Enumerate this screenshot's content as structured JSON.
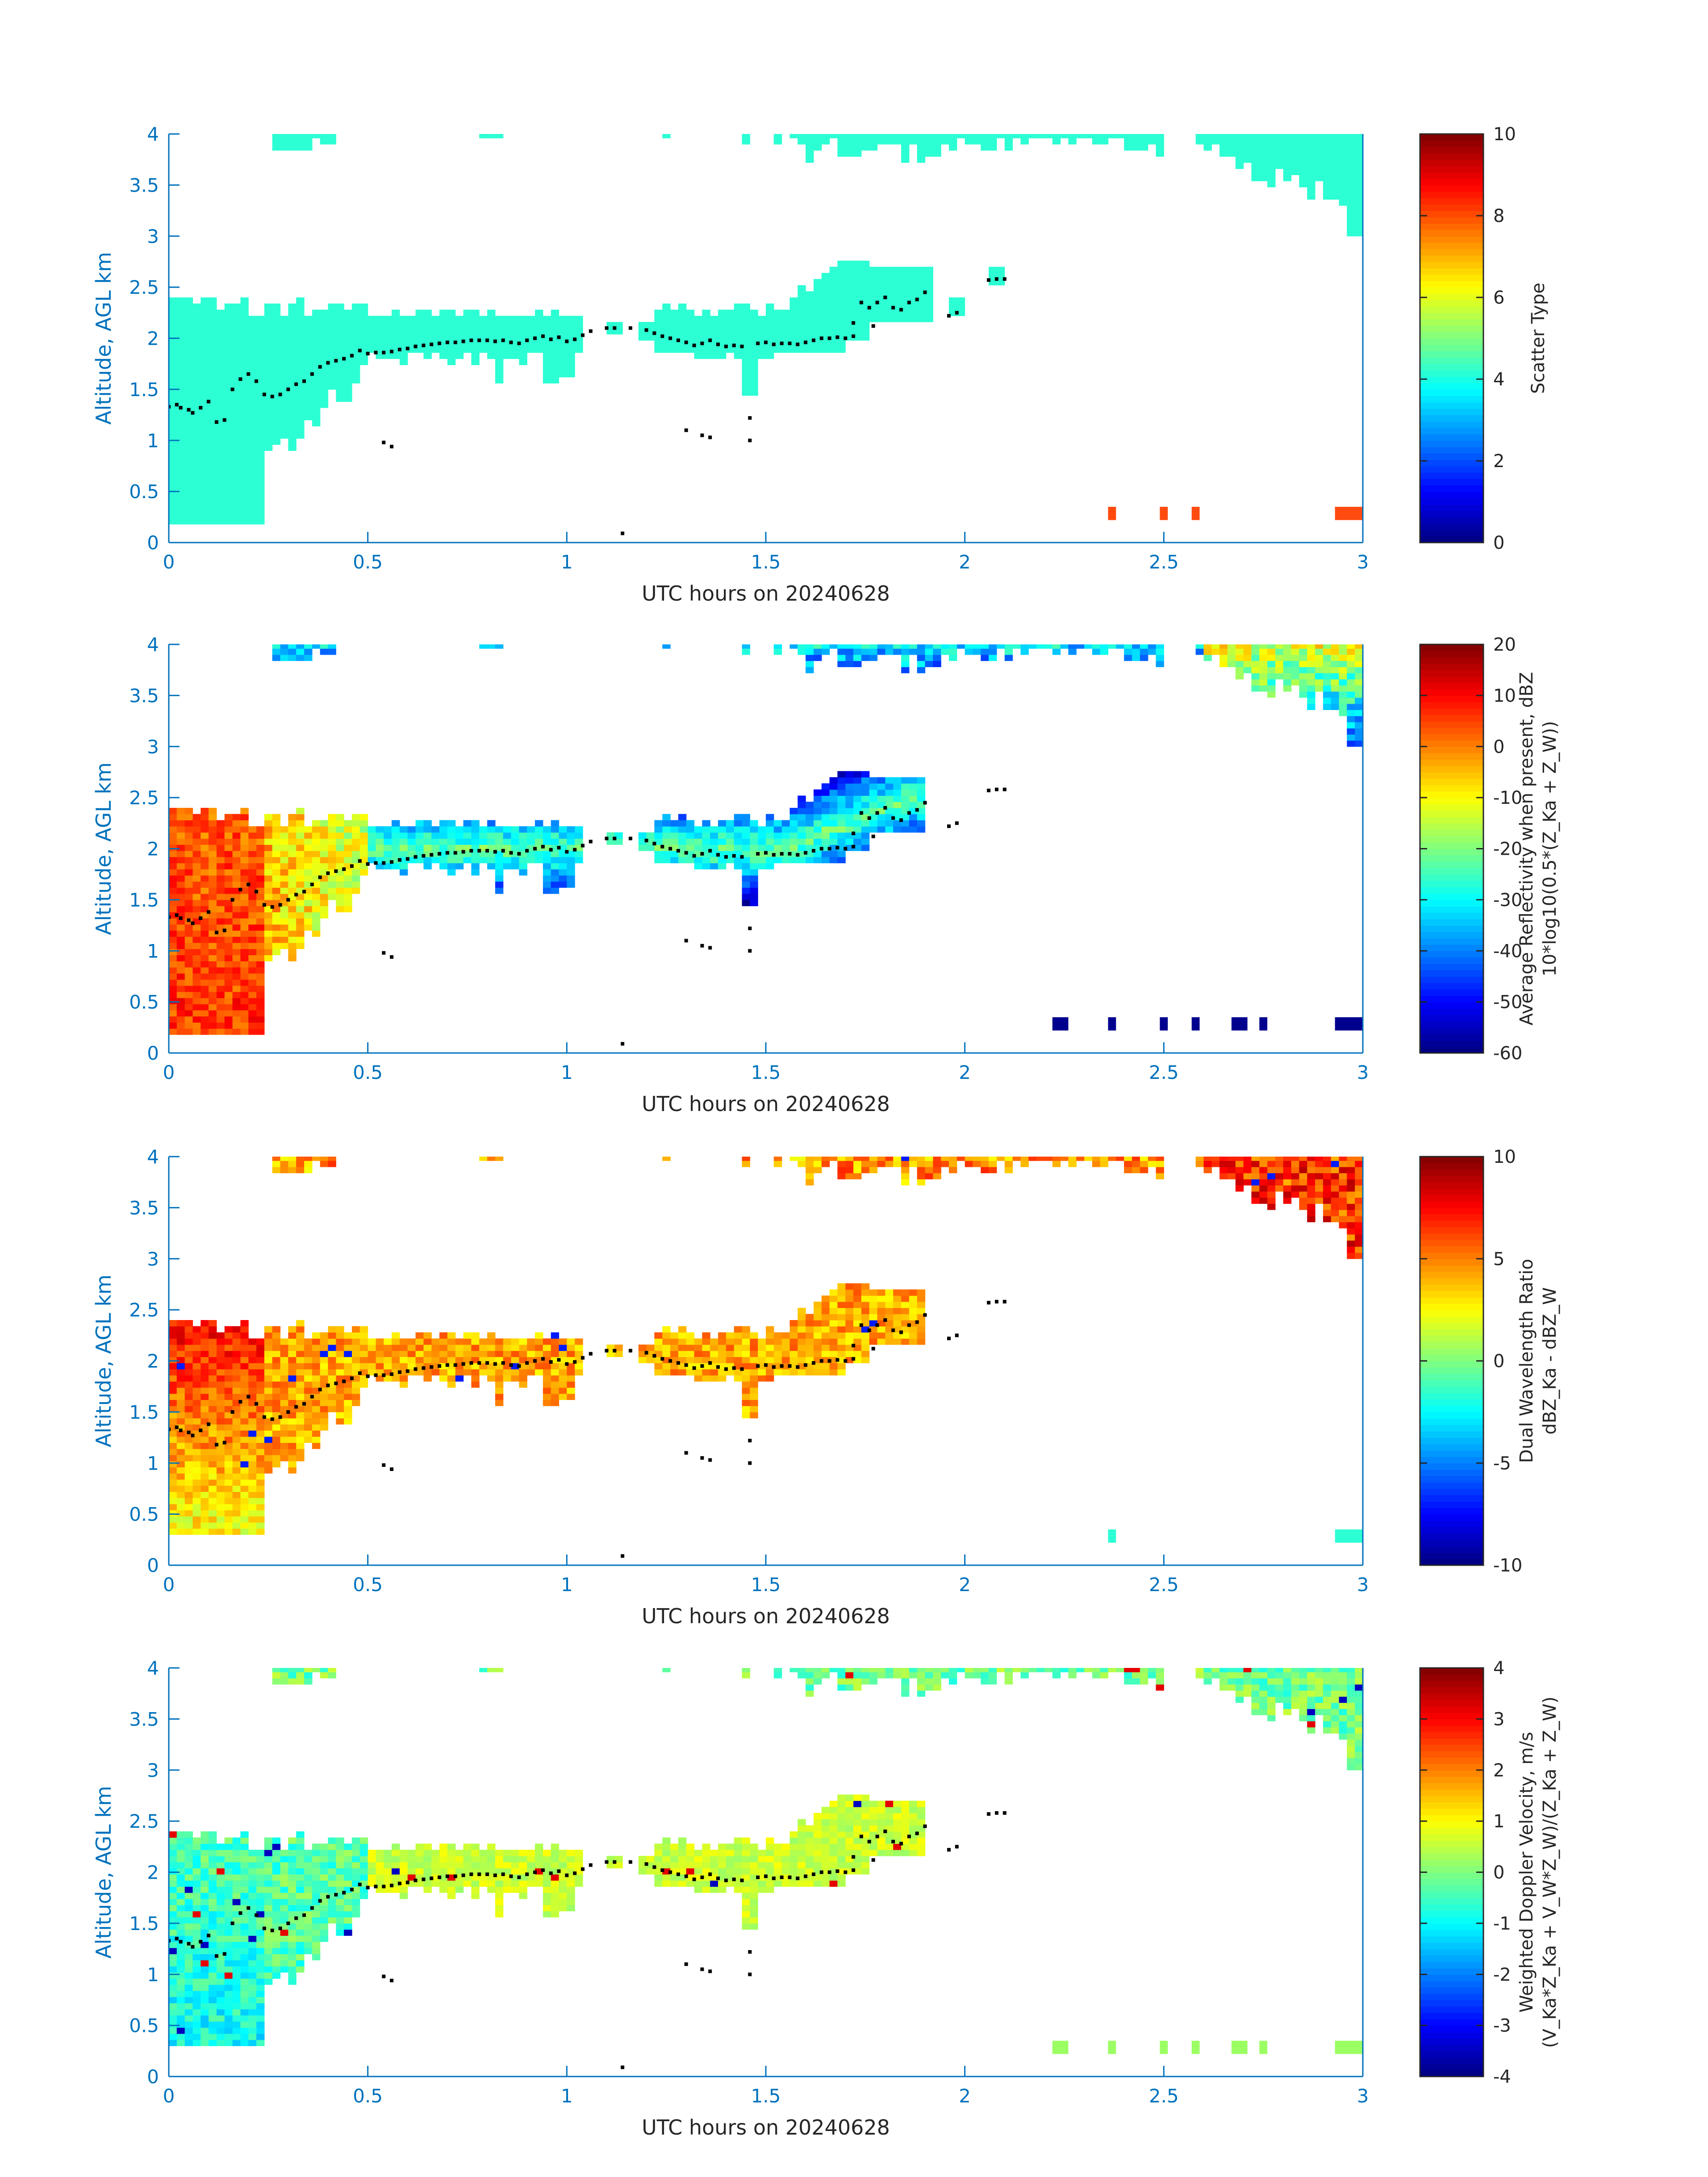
{
  "chart_data": [
    {
      "type": "heatmap",
      "panel": "scatter-type",
      "xlabel": "UTC hours on 20240628",
      "ylabel": "Altitude, AGL km",
      "xlim": [
        0,
        3
      ],
      "ylim": [
        0,
        4
      ],
      "xticks": [
        "0",
        "0.5",
        "1",
        "1.5",
        "2",
        "2.5",
        "3"
      ],
      "yticks": [
        "0",
        "0.5",
        "1",
        "1.5",
        "2",
        "2.5",
        "3",
        "3.5",
        "4"
      ],
      "colorbar": {
        "label_lines": [
          "Scatter Type"
        ],
        "clim": [
          0,
          10
        ],
        "ticks": [
          "0",
          "2",
          "4",
          "6",
          "8",
          "10"
        ]
      },
      "colors": {
        "low": "#00008F",
        "high": "#800000",
        "main": "#2CFFD3",
        "accent": "#FF4A10"
      }
    },
    {
      "type": "heatmap",
      "panel": "reflectivity",
      "xlabel": "UTC hours on 20240628",
      "ylabel": "Altitude, AGL km",
      "xlim": [
        0,
        3
      ],
      "ylim": [
        0,
        4
      ],
      "xticks": [
        "0",
        "0.5",
        "1",
        "1.5",
        "2",
        "2.5",
        "3"
      ],
      "yticks": [
        "0",
        "0.5",
        "1",
        "1.5",
        "2",
        "2.5",
        "3",
        "3.5",
        "4"
      ],
      "colorbar": {
        "label_lines": [
          "Average Reflectivity when present, dBZ",
          "10*log10(0.5*(Z_Ka + Z_W))"
        ],
        "clim": [
          -60,
          20
        ],
        "ticks": [
          "-60",
          "-50",
          "-40",
          "-30",
          "-20",
          "-10",
          "0",
          "10",
          "20"
        ]
      }
    },
    {
      "type": "heatmap",
      "panel": "dual-wavelength-ratio",
      "xlabel": "UTC hours on 20240628",
      "ylabel": "Altitude, AGL km",
      "xlim": [
        0,
        3
      ],
      "ylim": [
        0,
        4
      ],
      "xticks": [
        "0",
        "0.5",
        "1",
        "1.5",
        "2",
        "2.5",
        "3"
      ],
      "yticks": [
        "0",
        "0.5",
        "1",
        "1.5",
        "2",
        "2.5",
        "3",
        "3.5",
        "4"
      ],
      "colorbar": {
        "label_lines": [
          "Dual Wavelength Ratio",
          "dBZ_Ka - dBZ_W"
        ],
        "clim": [
          -10,
          10
        ],
        "ticks": [
          "-10",
          "-5",
          "0",
          "5",
          "10"
        ]
      }
    },
    {
      "type": "heatmap",
      "panel": "doppler-velocity",
      "xlabel": "UTC hours on 20240628",
      "ylabel": "Altitude, AGL km",
      "xlim": [
        0,
        3
      ],
      "ylim": [
        0,
        4
      ],
      "xticks": [
        "0",
        "0.5",
        "1",
        "1.5",
        "2",
        "2.5",
        "3"
      ],
      "yticks": [
        "0",
        "0.5",
        "1",
        "1.5",
        "2",
        "2.5",
        "3",
        "3.5",
        "4"
      ],
      "colorbar": {
        "label_lines": [
          "Weighted Doppler Velocity, m/s",
          "(V_Ka*Z_Ka + V_W*Z_W)/(Z_Ka + Z_W)"
        ],
        "clim": [
          -4,
          4
        ],
        "ticks": [
          "-4",
          "-3",
          "-2",
          "-1",
          "0",
          "1",
          "2",
          "3",
          "4"
        ]
      }
    }
  ],
  "cloud_base_dots": [
    [
      0.0,
      1.33
    ],
    [
      0.02,
      1.35
    ],
    [
      0.03,
      1.32
    ],
    [
      0.05,
      1.3
    ],
    [
      0.06,
      1.27
    ],
    [
      0.08,
      1.32
    ],
    [
      0.1,
      1.38
    ],
    [
      0.12,
      1.18
    ],
    [
      0.14,
      1.2
    ],
    [
      0.16,
      1.5
    ],
    [
      0.18,
      1.6
    ],
    [
      0.2,
      1.65
    ],
    [
      0.22,
      1.58
    ],
    [
      0.24,
      1.45
    ],
    [
      0.26,
      1.43
    ],
    [
      0.28,
      1.45
    ],
    [
      0.3,
      1.5
    ],
    [
      0.32,
      1.55
    ],
    [
      0.34,
      1.58
    ],
    [
      0.36,
      1.65
    ],
    [
      0.38,
      1.72
    ],
    [
      0.4,
      1.76
    ],
    [
      0.42,
      1.78
    ],
    [
      0.44,
      1.8
    ],
    [
      0.46,
      1.83
    ],
    [
      0.48,
      1.88
    ],
    [
      0.5,
      1.85
    ],
    [
      0.52,
      1.86
    ],
    [
      0.54,
      1.86
    ],
    [
      0.56,
      1.87
    ],
    [
      0.58,
      1.89
    ],
    [
      0.6,
      1.9
    ],
    [
      0.62,
      1.92
    ],
    [
      0.64,
      1.93
    ],
    [
      0.66,
      1.94
    ],
    [
      0.68,
      1.95
    ],
    [
      0.7,
      1.96
    ],
    [
      0.72,
      1.96
    ],
    [
      0.74,
      1.97
    ],
    [
      0.76,
      1.98
    ],
    [
      0.78,
      1.98
    ],
    [
      0.8,
      1.98
    ],
    [
      0.82,
      1.97
    ],
    [
      0.84,
      1.98
    ],
    [
      0.86,
      1.96
    ],
    [
      0.88,
      1.95
    ],
    [
      0.9,
      1.98
    ],
    [
      0.92,
      2.0
    ],
    [
      0.94,
      2.02
    ],
    [
      0.96,
      1.99
    ],
    [
      0.98,
      2.01
    ],
    [
      1.0,
      1.97
    ],
    [
      1.02,
      1.99
    ],
    [
      1.04,
      2.03
    ],
    [
      1.06,
      2.07
    ],
    [
      1.1,
      2.1
    ],
    [
      1.12,
      2.1
    ],
    [
      1.16,
      2.1
    ],
    [
      1.2,
      2.08
    ],
    [
      1.22,
      2.05
    ],
    [
      1.24,
      2.02
    ],
    [
      1.26,
      2.0
    ],
    [
      1.28,
      1.98
    ],
    [
      1.3,
      1.96
    ],
    [
      1.32,
      1.93
    ],
    [
      1.34,
      1.95
    ],
    [
      1.36,
      1.98
    ],
    [
      1.38,
      1.94
    ],
    [
      1.4,
      1.92
    ],
    [
      1.42,
      1.93
    ],
    [
      1.44,
      1.92
    ],
    [
      1.48,
      1.95
    ],
    [
      1.5,
      1.96
    ],
    [
      1.52,
      1.94
    ],
    [
      1.54,
      1.95
    ],
    [
      1.56,
      1.95
    ],
    [
      1.58,
      1.94
    ],
    [
      1.6,
      1.96
    ],
    [
      1.62,
      1.98
    ],
    [
      1.64,
      2.0
    ],
    [
      1.66,
      2.0
    ],
    [
      1.68,
      2.01
    ],
    [
      1.7,
      2.0
    ],
    [
      1.72,
      2.15
    ],
    [
      1.74,
      2.35
    ],
    [
      1.76,
      2.3
    ],
    [
      1.78,
      2.35
    ],
    [
      1.8,
      2.4
    ],
    [
      1.82,
      2.3
    ],
    [
      1.84,
      2.28
    ],
    [
      1.86,
      2.35
    ],
    [
      1.88,
      2.38
    ],
    [
      1.9,
      2.45
    ],
    [
      1.96,
      2.22
    ],
    [
      1.98,
      2.25
    ],
    [
      2.06,
      2.57
    ],
    [
      2.08,
      2.58
    ],
    [
      2.1,
      2.58
    ],
    [
      0.54,
      0.98
    ],
    [
      0.56,
      0.94
    ],
    [
      1.14,
      0.09
    ],
    [
      1.3,
      1.1
    ],
    [
      1.34,
      1.05
    ],
    [
      1.36,
      1.03
    ],
    [
      1.46,
      1.0
    ],
    [
      1.46,
      1.22
    ],
    [
      1.72,
      2.02
    ],
    [
      1.77,
      2.12
    ]
  ]
}
